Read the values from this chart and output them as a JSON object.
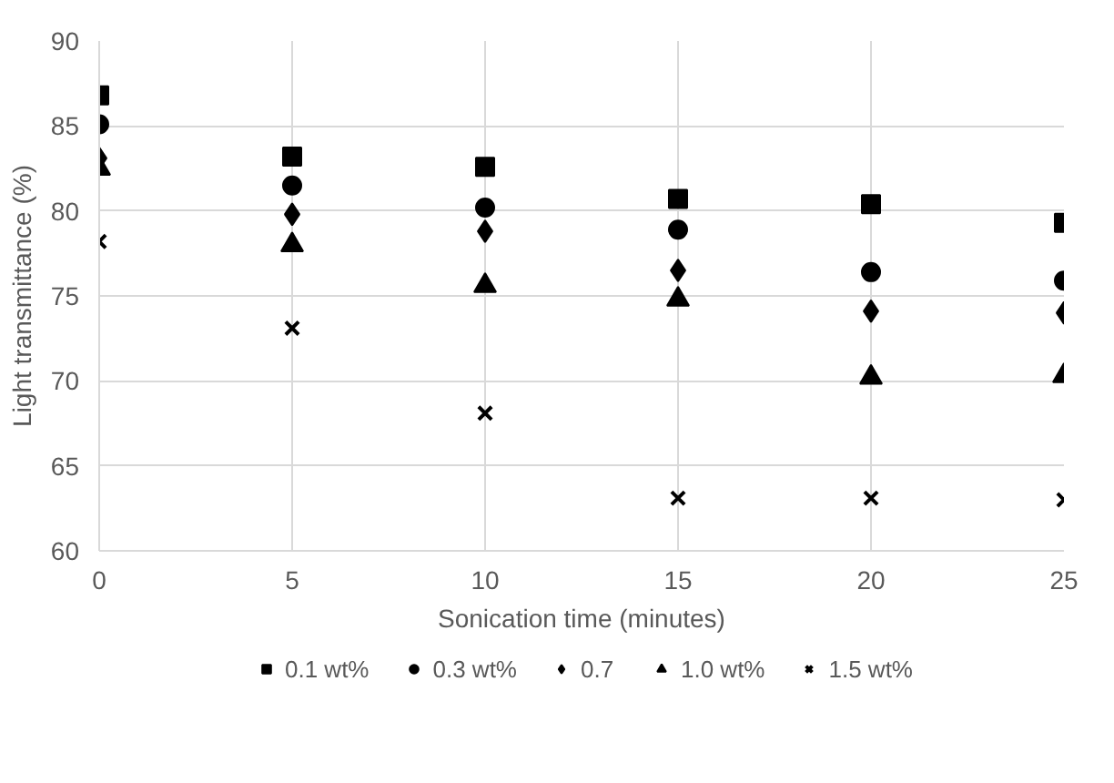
{
  "chart_data": {
    "type": "scatter",
    "xlabel": "Sonication time (minutes)",
    "ylabel": "Light transmittance (%)",
    "x": [
      0,
      5,
      10,
      15,
      20,
      25
    ],
    "series": [
      {
        "name": "0.1 wt%",
        "color": "#000000",
        "marker": "square",
        "values": [
          86.8,
          83.2,
          82.6,
          80.7,
          80.4,
          79.3
        ]
      },
      {
        "name": "0.3 wt%",
        "color": "#000000",
        "marker": "circle",
        "values": [
          85.1,
          81.5,
          80.2,
          78.9,
          76.4,
          75.9
        ]
      },
      {
        "name": "0.7",
        "color": "#000000",
        "marker": "diamond",
        "values": [
          83.1,
          79.8,
          78.8,
          76.5,
          74.1,
          74.0
        ]
      },
      {
        "name": "1.0 wt%",
        "color": "#000000",
        "marker": "triangle",
        "values": [
          82.5,
          78.0,
          75.6,
          74.8,
          70.2,
          70.3
        ]
      },
      {
        "name": "1.5 wt%",
        "color": "#000000",
        "marker": "cross",
        "values": [
          78.2,
          73.1,
          68.1,
          63.1,
          63.1,
          63.0
        ]
      }
    ],
    "xlim": [
      0,
      25
    ],
    "xticks": [
      0,
      5,
      10,
      15,
      20,
      25
    ],
    "ylim": [
      60,
      90
    ],
    "yticks": [
      60,
      65,
      70,
      75,
      80,
      85,
      90
    ],
    "grid": true,
    "legend": "bottom"
  }
}
